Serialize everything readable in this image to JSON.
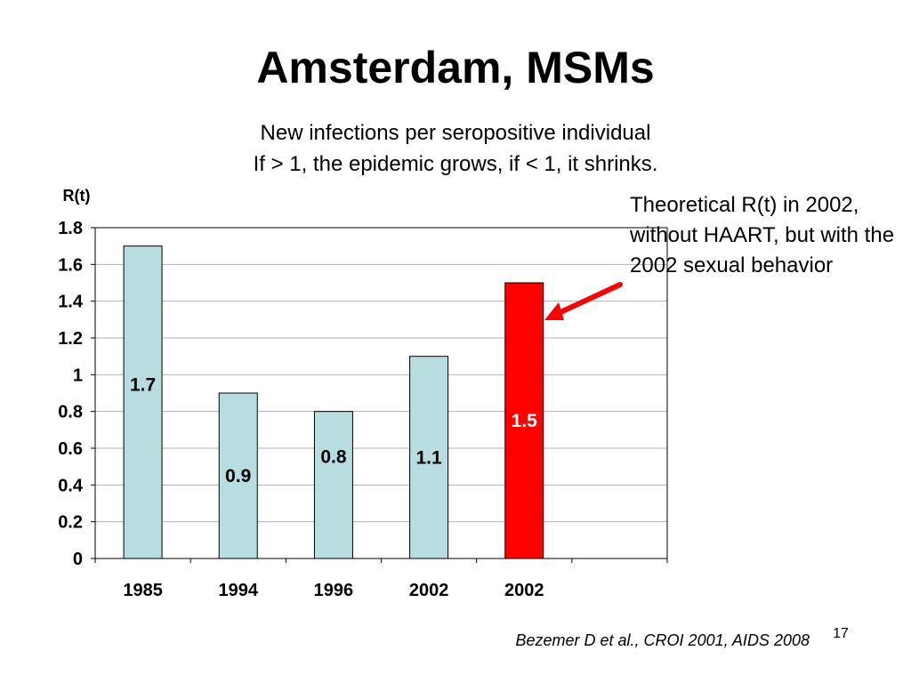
{
  "slide": {
    "title": "Amsterdam, MSMs",
    "subtitle_line1": "New infections per seropositive individual",
    "subtitle_line2": "If > 1, the epidemic grows, if < 1, it shrinks.",
    "annotation": "Theoretical R(t) in 2002, without HAART, but with the 2002 sexual behavior",
    "citation": "Bezemer D et al., CROI 2001, AIDS 2008",
    "page_number": "17"
  },
  "chart_data": {
    "type": "bar",
    "categories": [
      "1985",
      "1994",
      "1996",
      "2002",
      "2002"
    ],
    "values": [
      1.7,
      0.9,
      0.8,
      1.1,
      1.5
    ],
    "data_labels": [
      "1.7",
      "0.9",
      "0.8",
      "1.1",
      "1.5"
    ],
    "ylabel": "R(t)",
    "ylim": [
      0,
      1.8
    ],
    "yticks": [
      "0",
      "0.2",
      "0.4",
      "0.6",
      "0.8",
      "1",
      "1.2",
      "1.4",
      "1.6",
      "1.8"
    ],
    "grid": true,
    "colors": {
      "bar_fill": "#b7dde0",
      "highlight_fill": "#ff0000",
      "bar_stroke": "#000000",
      "grid": "#b0b0b0",
      "arrow": "#ff0000",
      "label_highlight": "#ffffff",
      "label_default": "#000000"
    },
    "highlight_index": 4
  }
}
